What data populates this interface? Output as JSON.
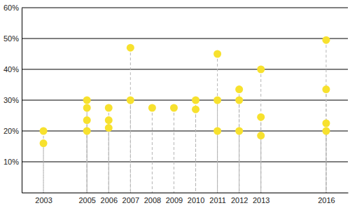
{
  "chart_data": {
    "type": "scatter",
    "x": [
      2003,
      2003,
      2005,
      2005,
      2005,
      2005,
      2006,
      2006,
      2006,
      2007,
      2007,
      2008,
      2009,
      2010,
      2010,
      2011,
      2011,
      2011,
      2012,
      2012,
      2012,
      2013,
      2013,
      2013,
      2016,
      2016,
      2016,
      2016
    ],
    "values": [
      20,
      16,
      30,
      27.5,
      23.5,
      20,
      27.5,
      23.5,
      21,
      47,
      30,
      27.5,
      27.5,
      30,
      27,
      45,
      30,
      20,
      33.5,
      30,
      20,
      40,
      24.5,
      18.5,
      49.5,
      33.5,
      22.5,
      20
    ],
    "color": "#f7e12e",
    "marker": "circle",
    "xlim": [
      2002,
      2017
    ],
    "xticks": [
      2003,
      2005,
      2006,
      2007,
      2008,
      2009,
      2010,
      2011,
      2012,
      2013,
      2016
    ],
    "ylim": [
      0,
      60
    ],
    "yticks": [
      {
        "value": 10,
        "label": "10%"
      },
      {
        "value": 20,
        "label": "20%"
      },
      {
        "value": 30,
        "label": "30%"
      },
      {
        "value": 40,
        "label": "40%"
      },
      {
        "value": 50,
        "label": "50%"
      },
      {
        "value": 60,
        "label": "60%"
      }
    ],
    "grid": true
  }
}
